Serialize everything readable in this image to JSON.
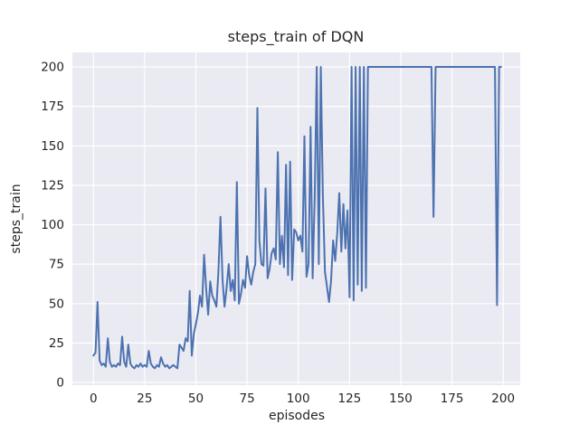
{
  "chart_data": {
    "type": "line",
    "title": "steps_train of DQN",
    "xlabel": "episodes",
    "ylabel": "steps_train",
    "x_ticks": [
      0,
      25,
      50,
      75,
      100,
      125,
      150,
      175,
      200
    ],
    "y_ticks": [
      0,
      25,
      50,
      75,
      100,
      125,
      150,
      175,
      200
    ],
    "xlim": [
      -10,
      208
    ],
    "ylim": [
      -2,
      209
    ],
    "grid": true,
    "legend_position": "none",
    "style": "seaborn-darkgrid",
    "colors": {
      "line": "#4c72b0",
      "axes_background": "#eaeaf2",
      "grid": "#ffffff",
      "text": "#262626"
    },
    "series": [
      {
        "name": "steps_train",
        "x_start": 0,
        "x_step": 1,
        "values": [
          17,
          19,
          51,
          14,
          11,
          12,
          10,
          28,
          13,
          10,
          11,
          10,
          12,
          11,
          29,
          13,
          10,
          24,
          12,
          10,
          9,
          11,
          10,
          12,
          10,
          11,
          10,
          20,
          12,
          10,
          9,
          11,
          10,
          16,
          12,
          10,
          11,
          9,
          10,
          11,
          10,
          9,
          24,
          22,
          20,
          28,
          26,
          58,
          17,
          31,
          37,
          44,
          55,
          48,
          81,
          60,
          43,
          64,
          55,
          52,
          48,
          70,
          105,
          65,
          48,
          60,
          75,
          58,
          65,
          52,
          127,
          50,
          56,
          65,
          60,
          80,
          68,
          62,
          70,
          75,
          174,
          90,
          75,
          74,
          123,
          66,
          72,
          82,
          85,
          78,
          146,
          75,
          93,
          73,
          138,
          68,
          140,
          65,
          97,
          95,
          90,
          93,
          83,
          156,
          67,
          75,
          162,
          66,
          118,
          200,
          75,
          200,
          118,
          70,
          61,
          51,
          65,
          90,
          77,
          95,
          120,
          83,
          113,
          85,
          109,
          54,
          200,
          52,
          200,
          62,
          200,
          58,
          200,
          60,
          200,
          200,
          200,
          200,
          200,
          200,
          200,
          200,
          200,
          200,
          200,
          200,
          200,
          200,
          200,
          200,
          200,
          200,
          200,
          200,
          200,
          200,
          200,
          200,
          200,
          200,
          200,
          200,
          200,
          200,
          200,
          200,
          105,
          200,
          200,
          200,
          200,
          200,
          200,
          200,
          200,
          200,
          200,
          200,
          200,
          200,
          200,
          200,
          200,
          200,
          200,
          200,
          200,
          200,
          200,
          200,
          200,
          200,
          200,
          200,
          200,
          200,
          200,
          49,
          200,
          200
        ]
      }
    ]
  }
}
